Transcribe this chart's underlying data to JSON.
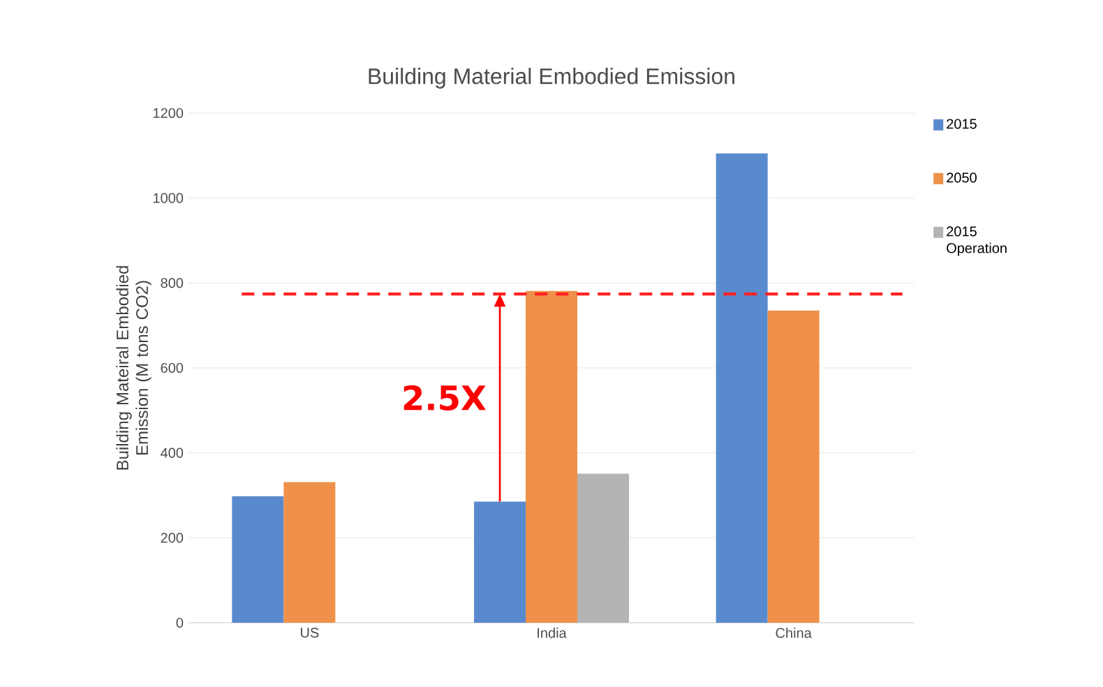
{
  "chart_data": {
    "type": "bar",
    "title": "Building Material Embodied Emission",
    "ylabel": "Building Mateiral Embodied Emission (M tons CO2)",
    "categories": [
      "US",
      "India",
      "China"
    ],
    "series": [
      {
        "name": "2015",
        "color": "#5a8ace",
        "values": [
          298,
          285,
          1105
        ]
      },
      {
        "name": "2050",
        "color": "#ef914a",
        "values": [
          331,
          781,
          735
        ]
      },
      {
        "name": "2015 Operation",
        "color": "#b4b4b4",
        "values": [
          null,
          351,
          null
        ]
      }
    ],
    "ylim": [
      0,
      1200
    ],
    "yticks": [
      0,
      200,
      400,
      600,
      800,
      1000,
      1200
    ],
    "grid": "y",
    "legend": "right",
    "ref_lines": [
      {
        "axis": "y",
        "value": 774,
        "color": "#ff2020",
        "line_style": "dashed"
      }
    ],
    "annotations": [
      "2.5X"
    ]
  }
}
